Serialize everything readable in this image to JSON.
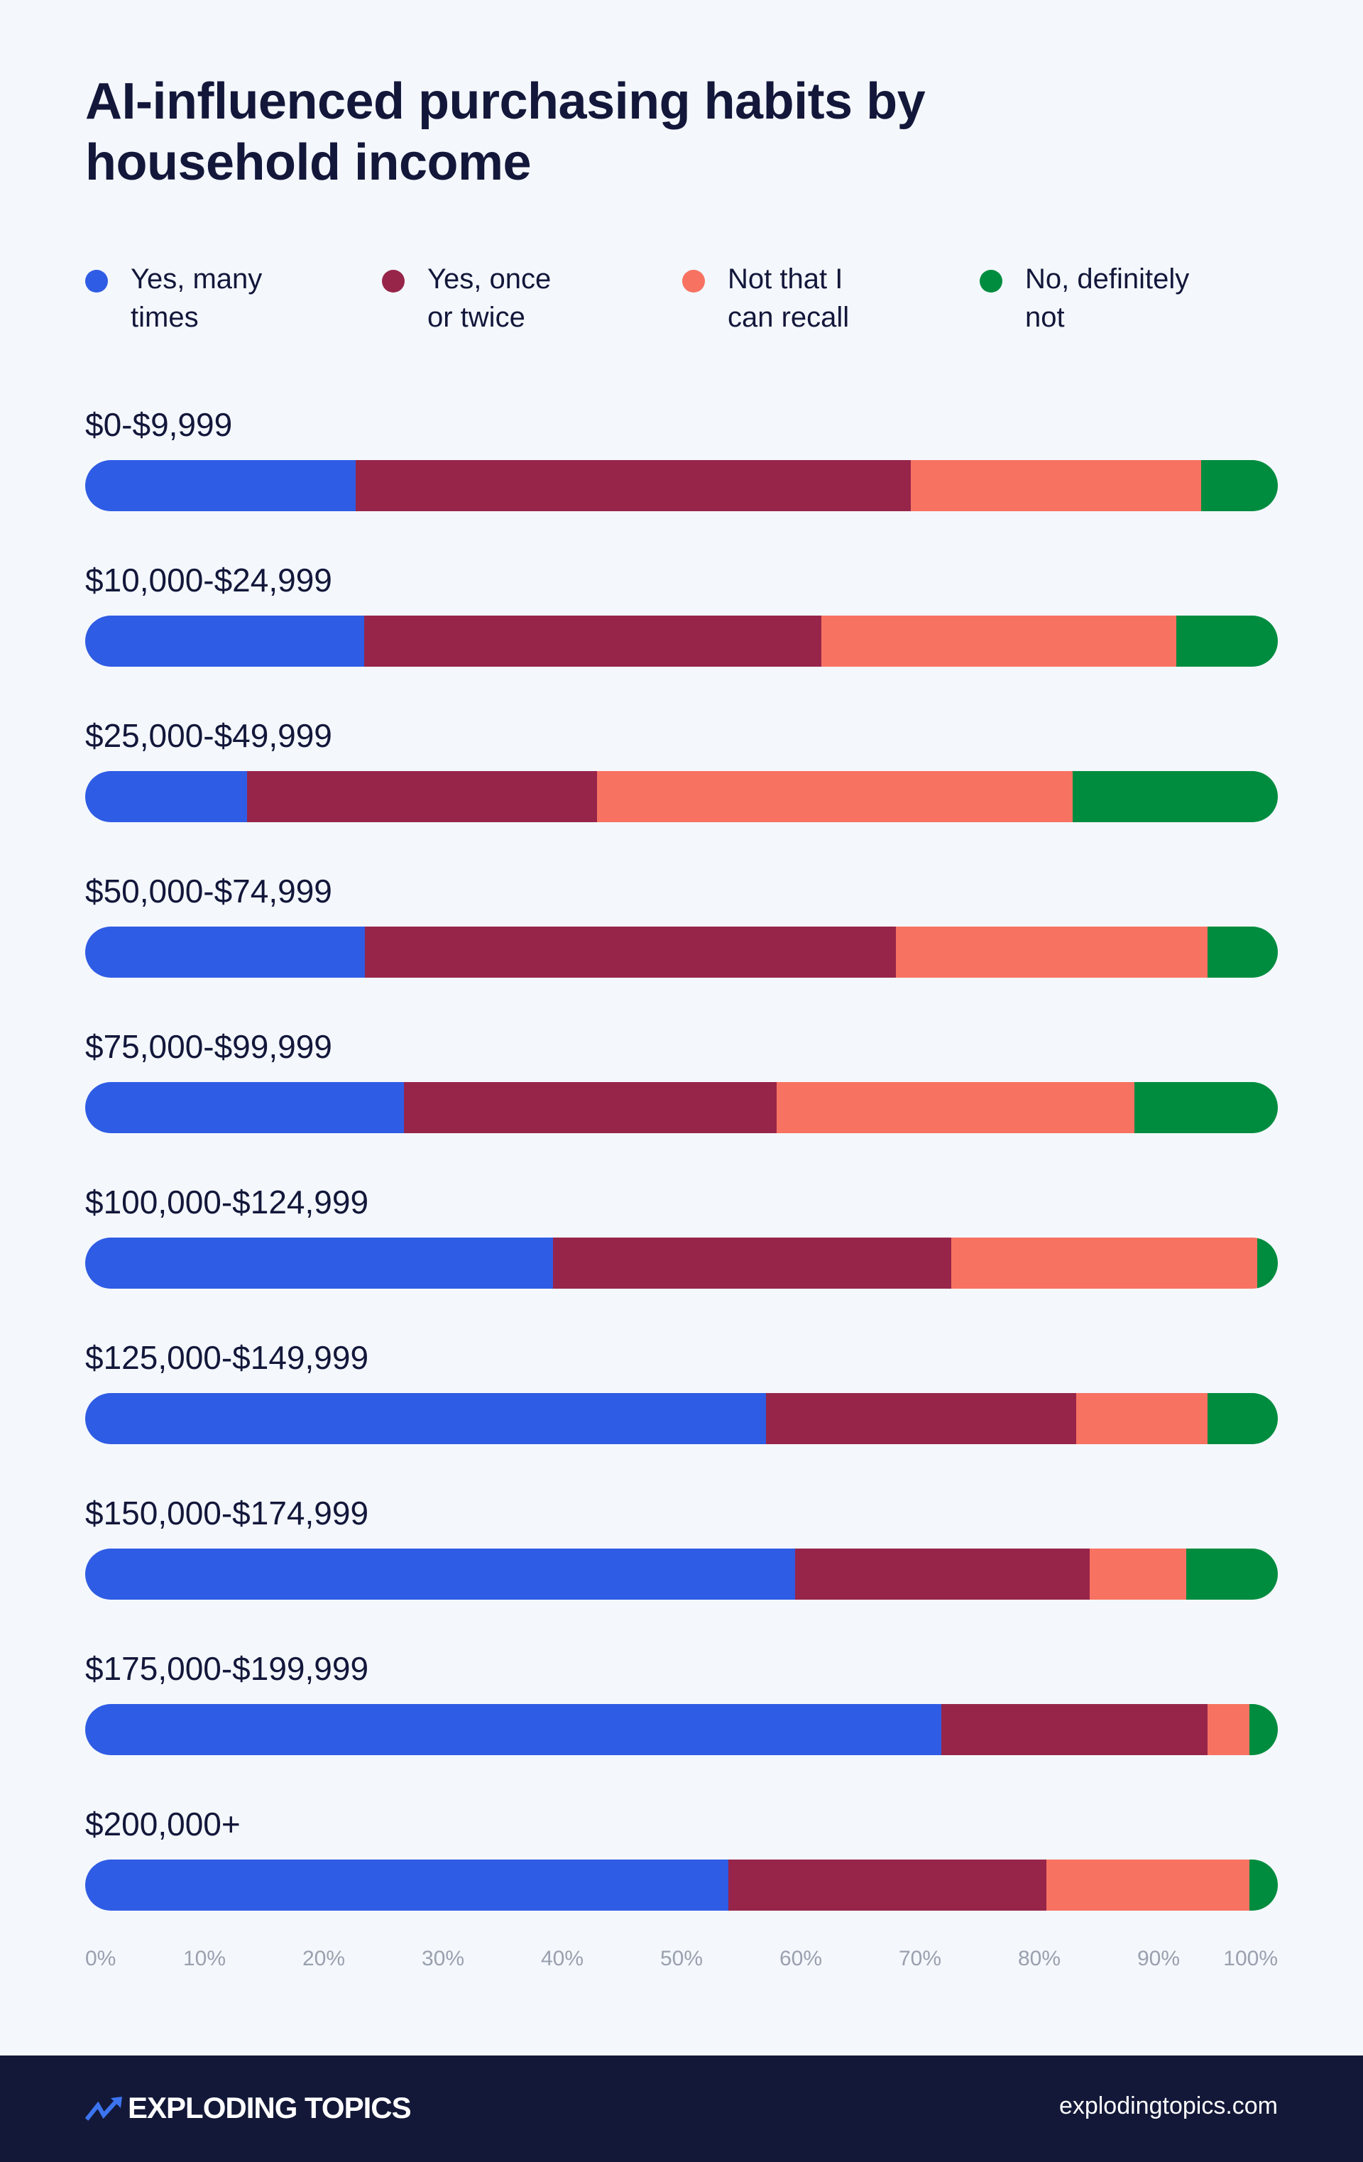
{
  "chart_data": {
    "type": "bar",
    "orientation": "horizontal",
    "stacked": true,
    "normalized": true,
    "title": "AI-influenced purchasing habits by household income",
    "categories": [
      "$0-$9,999",
      "$10,000-$24,999",
      "$25,000-$49,999",
      "$50,000-$74,999",
      "$75,000-$99,999",
      "$100,000-$124,999",
      "$125,000-$149,999",
      "$150,000-$174,999",
      "$175,000-$199,999",
      "$200,000+"
    ],
    "series": [
      {
        "name": "Yes, many times",
        "color": "#2f5ce4",
        "values": [
          22.7,
          23.4,
          13.6,
          23.4,
          26.7,
          39.2,
          57.1,
          59.5,
          71.8,
          53.9
        ]
      },
      {
        "name": "Yes, once or twice",
        "color": "#97254a",
        "values": [
          46.5,
          38.3,
          29.3,
          44.5,
          31.3,
          33.4,
          26.0,
          24.7,
          22.3,
          26.7
        ]
      },
      {
        "name": "Not that I can recall",
        "color": "#f87262",
        "values": [
          24.4,
          29.8,
          39.9,
          26.1,
          30.0,
          25.7,
          11.0,
          8.1,
          3.5,
          17.0
        ]
      },
      {
        "name": "No, definitely not",
        "color": "#008c3f",
        "values": [
          6.4,
          8.5,
          17.2,
          5.9,
          12.0,
          1.7,
          5.9,
          7.7,
          2.4,
          2.4
        ]
      }
    ],
    "xlim": [
      0,
      100
    ],
    "xticks": [
      "0%",
      "10%",
      "20%",
      "30%",
      "40%",
      "50%",
      "60%",
      "70%",
      "80%",
      "90%",
      "100%"
    ],
    "legend_position": "top",
    "grid": false
  },
  "legend_lines": [
    [
      "Yes, many",
      "times"
    ],
    [
      "Yes, once",
      "or twice"
    ],
    [
      "Not that I",
      "can recall"
    ],
    [
      "No, definitely",
      "not"
    ]
  ],
  "footer": {
    "brand": "EXPLODING TOPICS",
    "site": "explodingtopics.com"
  }
}
